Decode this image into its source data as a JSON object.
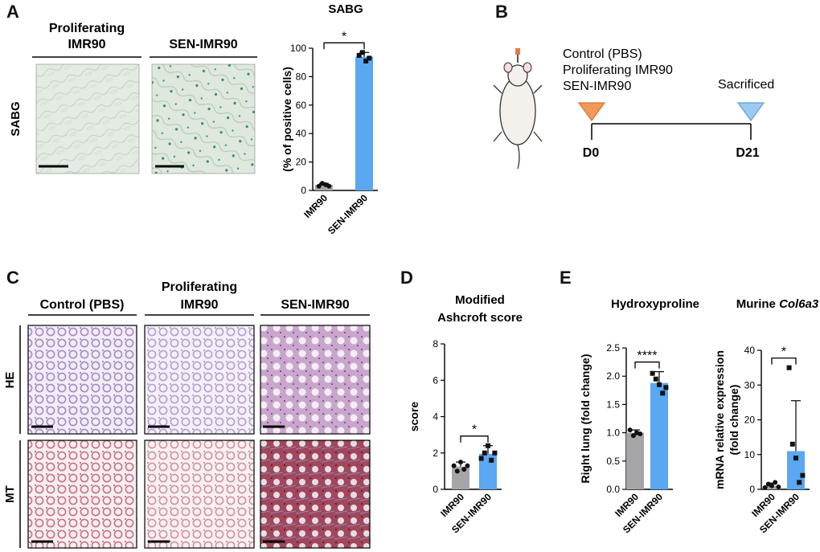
{
  "panels": {
    "a": "A",
    "b": "B",
    "c": "C",
    "d": "D",
    "e": "E"
  },
  "panel_a": {
    "col1": [
      "Proliferating",
      "IMR90"
    ],
    "col2": "SEN-IMR90",
    "row_label": "SABG"
  },
  "panel_b": {
    "groups": [
      "Control (PBS)",
      "Proliferating IMR90",
      "SEN-IMR90"
    ],
    "sacrificed": "Sacrificed",
    "day_start": "D0",
    "day_end": "D21"
  },
  "panel_c": {
    "col1": "Control (PBS)",
    "col2": [
      "Proliferating",
      "IMR90"
    ],
    "col3": "SEN-IMR90",
    "row1": "HE",
    "row2": "MT"
  },
  "colors": {
    "gray_bar": "#a6a6a8",
    "blue_bar": "#5aa7f2",
    "ink": "#111111"
  },
  "chart_data": [
    {
      "type": "bar",
      "title": "SABG",
      "ylabel": "(% of positive cells)",
      "categories": [
        "IMR90",
        "SEN-IMR90"
      ],
      "values": [
        4,
        94
      ],
      "errors": [
        1,
        3
      ],
      "ylim": [
        0,
        100
      ],
      "yticks": [
        0,
        20,
        40,
        60,
        80,
        100
      ],
      "points": [
        [
          3,
          5,
          4,
          3
        ],
        [
          95,
          97,
          91,
          93
        ]
      ],
      "significance": "*"
    },
    {
      "type": "bar",
      "title": [
        "Modified",
        "Ashcroft score"
      ],
      "ylabel": "score",
      "categories": [
        "IMR90",
        "SEN-IMR90"
      ],
      "values": [
        1.25,
        1.95
      ],
      "errors": [
        0.25,
        0.45
      ],
      "ylim": [
        0,
        8
      ],
      "yticks": [
        0,
        2,
        4,
        6,
        8
      ],
      "points": [
        [
          1.3,
          1.0,
          1.5,
          1.1,
          1.3
        ],
        [
          1.7,
          2.0,
          2.4,
          1.6,
          2.0
        ]
      ],
      "significance": "*"
    },
    {
      "type": "bar",
      "title": "Hydroxyproline",
      "ylabel": "Right lung (fold change)",
      "categories": [
        "IMR90",
        "SEN-IMR90"
      ],
      "values": [
        1.0,
        1.88
      ],
      "errors": [
        0.05,
        0.2
      ],
      "ylim": [
        0,
        2.5
      ],
      "yticks": [
        0.0,
        0.5,
        1.0,
        1.5,
        2.0,
        2.5
      ],
      "points": [
        [
          1.05,
          0.95,
          1.0,
          0.98
        ],
        [
          2.05,
          1.95,
          1.85,
          1.7,
          1.8
        ]
      ],
      "significance": "****"
    },
    {
      "type": "bar",
      "title": [
        "Murine ",
        "Col6a3"
      ],
      "ylabel": [
        "mRNA relative expression",
        "(fold change)"
      ],
      "categories": [
        "IMR90",
        "SEN-IMR90"
      ],
      "values": [
        1.0,
        11.0
      ],
      "errors": [
        0.8,
        14.5
      ],
      "ylim": [
        0,
        40
      ],
      "yticks": [
        0,
        10,
        20,
        30,
        40
      ],
      "points": [
        [
          0.5,
          1.5,
          1.0,
          2.0,
          0.7
        ],
        [
          35,
          13,
          9,
          2,
          4
        ]
      ],
      "significance": "*"
    }
  ]
}
